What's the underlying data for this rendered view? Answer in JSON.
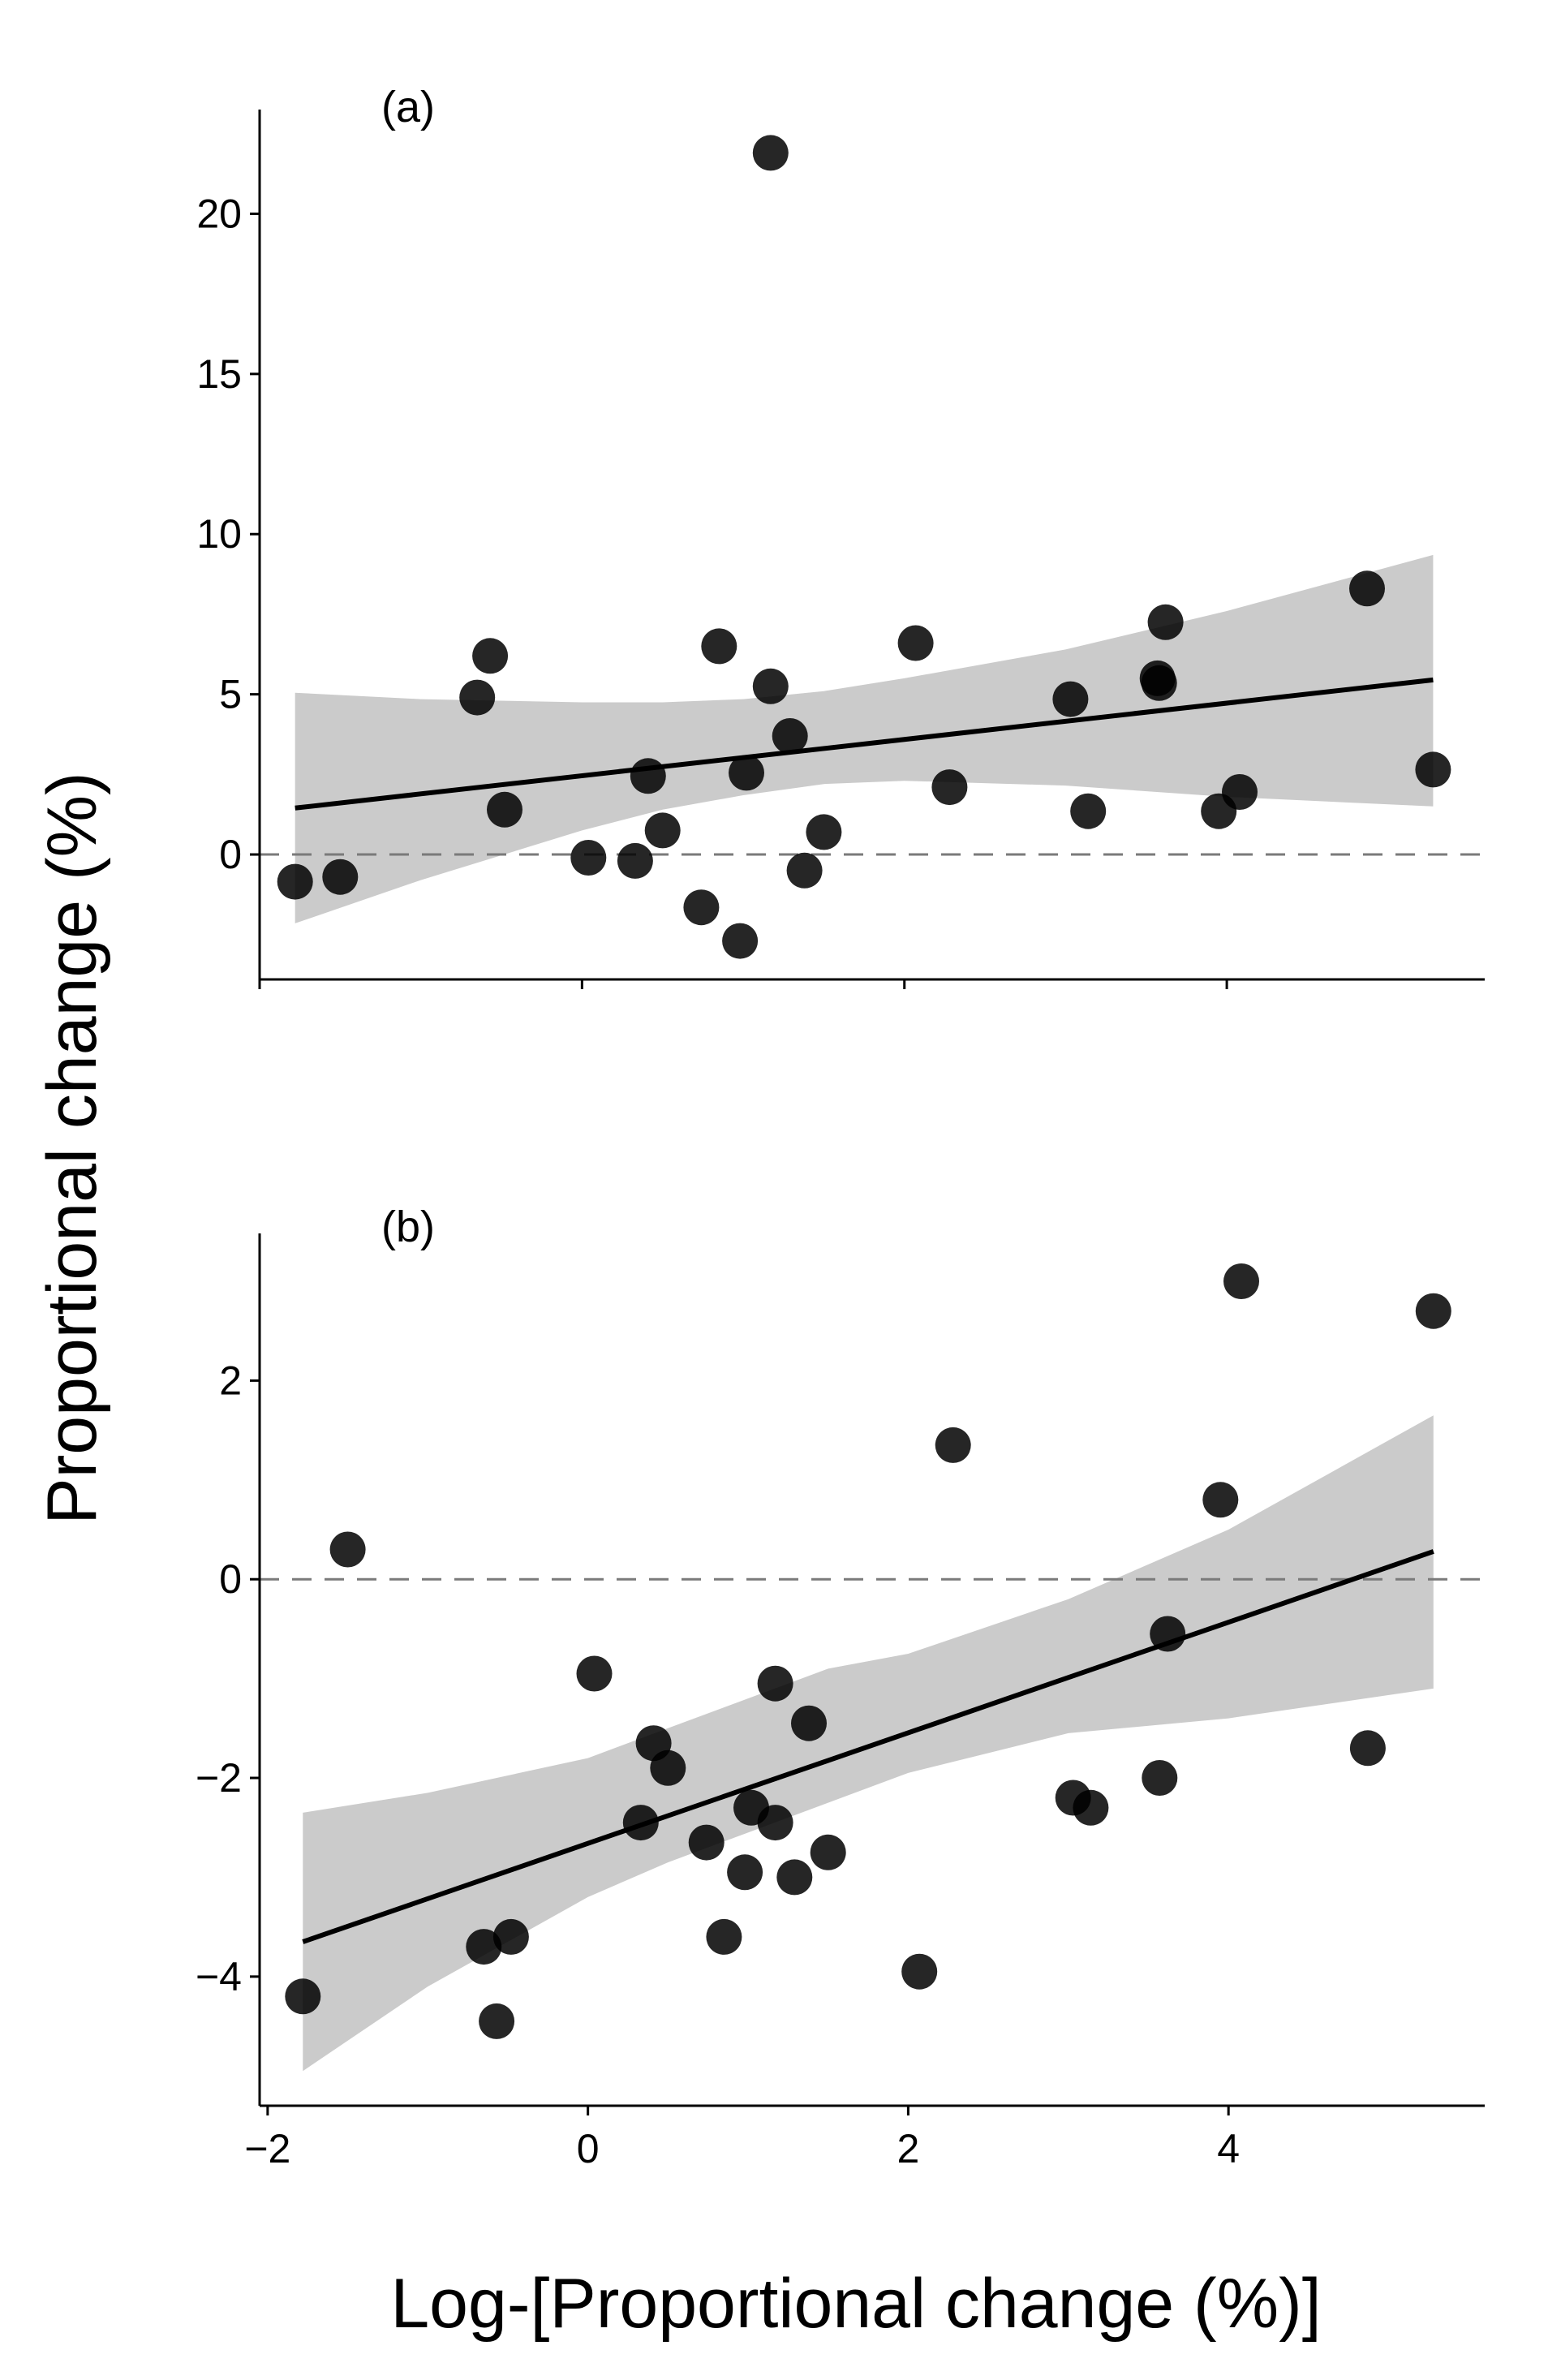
{
  "figure": {
    "ylabel": "Proportional change (%)",
    "xlabel": "Log-[Proportional change (%)]"
  },
  "chart_data": [
    {
      "type": "scatter",
      "panel_label": "(a)",
      "xlim": [
        -2.0,
        5.6
      ],
      "ylim": [
        -3.9,
        23.0
      ],
      "xticks": [
        -2,
        0,
        2,
        4
      ],
      "show_xtick_labels": false,
      "yticks": [
        0,
        5,
        10,
        15,
        20
      ],
      "ytick_labels": [
        "0",
        "5",
        "10",
        "15",
        "20"
      ],
      "reference_line": 0,
      "fit_line": {
        "x": [
          -1.78,
          5.28
        ],
        "y": [
          1.45,
          5.45
        ]
      },
      "confidence_band": {
        "x": [
          -1.78,
          -1.0,
          0.0,
          0.5,
          1.0,
          1.5,
          2.0,
          3.0,
          4.0,
          5.28
        ],
        "upper": [
          5.05,
          4.85,
          4.75,
          4.75,
          4.85,
          5.1,
          5.5,
          6.4,
          7.6,
          9.35
        ],
        "lower": [
          -2.15,
          -0.8,
          0.75,
          1.4,
          1.85,
          2.2,
          2.3,
          2.15,
          1.8,
          1.5
        ]
      },
      "points": {
        "x": [
          -1.78,
          -1.5,
          -0.65,
          -0.57,
          -0.48,
          0.04,
          0.33,
          0.41,
          0.5,
          0.74,
          0.85,
          0.98,
          1.02,
          1.17,
          1.17,
          1.29,
          1.38,
          1.5,
          2.07,
          2.28,
          3.03,
          3.14,
          3.57,
          3.58,
          3.62,
          3.95,
          4.08,
          4.87,
          5.28
        ],
        "y": [
          -0.85,
          -0.7,
          4.9,
          6.2,
          1.4,
          -0.1,
          -0.2,
          2.45,
          0.75,
          -1.65,
          6.5,
          -2.7,
          2.55,
          5.25,
          21.9,
          3.7,
          -0.5,
          0.7,
          6.6,
          2.1,
          4.85,
          1.35,
          5.5,
          5.35,
          7.25,
          1.35,
          1.95,
          8.3,
          2.65
        ]
      }
    },
    {
      "type": "scatter",
      "panel_label": "(b)",
      "xlim": [
        -2.05,
        5.6
      ],
      "ylim": [
        -5.3,
        3.4
      ],
      "xticks": [
        -2,
        0,
        2,
        4
      ],
      "xtick_labels": [
        "−2",
        "0",
        "2",
        "4"
      ],
      "show_xtick_labels": true,
      "yticks": [
        -4,
        -2,
        0,
        2
      ],
      "ytick_labels": [
        "−4",
        "−2",
        "0",
        "2"
      ],
      "reference_line": 0,
      "fit_line": {
        "x": [
          -1.78,
          5.28
        ],
        "y": [
          -3.65,
          0.28
        ]
      },
      "confidence_band": {
        "x": [
          -1.78,
          -1.0,
          0.0,
          0.5,
          1.0,
          1.5,
          2.0,
          3.0,
          4.0,
          5.28
        ],
        "upper": [
          -2.35,
          -2.15,
          -1.8,
          -1.5,
          -1.2,
          -0.9,
          -0.75,
          -0.2,
          0.5,
          1.65
        ],
        "lower": [
          -4.95,
          -4.1,
          -3.2,
          -2.85,
          -2.55,
          -2.25,
          -1.95,
          -1.55,
          -1.4,
          -1.1
        ]
      },
      "points": {
        "x": [
          -1.78,
          -1.5,
          -0.65,
          -0.57,
          -0.48,
          0.04,
          0.33,
          0.41,
          0.5,
          0.74,
          0.85,
          0.98,
          1.02,
          1.17,
          1.17,
          1.29,
          1.38,
          1.5,
          2.07,
          2.28,
          3.03,
          3.14,
          3.57,
          3.62,
          3.95,
          4.08,
          4.87,
          5.28
        ],
        "y": [
          -4.2,
          0.3,
          -3.7,
          -4.45,
          -3.6,
          -0.95,
          -2.45,
          -1.65,
          -1.9,
          -2.65,
          -3.6,
          -2.95,
          -2.3,
          -1.05,
          -2.45,
          -3.0,
          -1.45,
          -2.75,
          -3.95,
          1.35,
          -2.2,
          -2.3,
          -2.0,
          -0.55,
          0.8,
          3.0,
          -1.7,
          2.7
        ]
      }
    }
  ]
}
